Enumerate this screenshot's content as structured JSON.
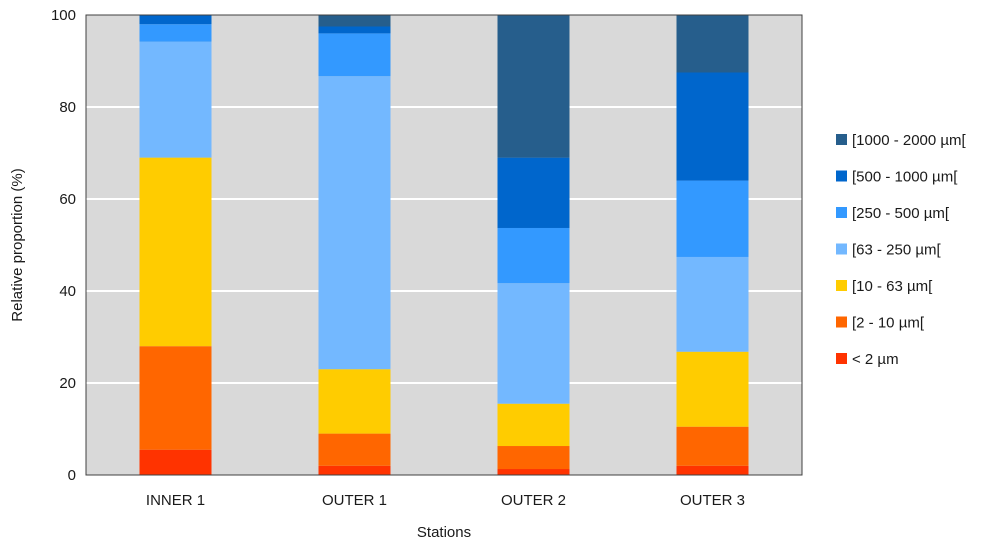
{
  "chart_data": {
    "type": "bar",
    "stacked": true,
    "title": "",
    "xlabel": "Stations",
    "ylabel": "Relative proportion (%)",
    "ylim": [
      0,
      100
    ],
    "yticks": [
      0,
      20,
      40,
      60,
      80,
      100
    ],
    "grid": true,
    "legend_position": "right",
    "categories": [
      "INNER 1",
      "OUTER 1",
      "OUTER 2",
      "OUTER 3"
    ],
    "series": [
      {
        "name": "< 2 µm",
        "color": "#ff3300",
        "values": [
          5.5,
          2.0,
          1.3,
          2.0
        ]
      },
      {
        "name": "[2  - 10 µm[",
        "color": "#ff6600",
        "values": [
          22.5,
          7.0,
          5.0,
          8.5
        ]
      },
      {
        "name": "[10  - 63 µm[",
        "color": "#ffcc00",
        "values": [
          41.0,
          14.0,
          9.2,
          16.3
        ]
      },
      {
        "name": "[63  - 250 µm[",
        "color": "#73b8ff",
        "values": [
          25.2,
          63.7,
          26.2,
          20.6
        ]
      },
      {
        "name": "[250  - 500 µm[",
        "color": "#3399ff",
        "values": [
          3.8,
          9.3,
          12.0,
          16.6
        ]
      },
      {
        "name": "[500  - 1000 µm[",
        "color": "#0066cc",
        "values": [
          2.0,
          1.5,
          15.3,
          23.5
        ]
      },
      {
        "name": "[1000  - 2000 µm[",
        "color": "#265e8c",
        "values": [
          0.0,
          2.5,
          31.0,
          12.5
        ]
      }
    ]
  }
}
